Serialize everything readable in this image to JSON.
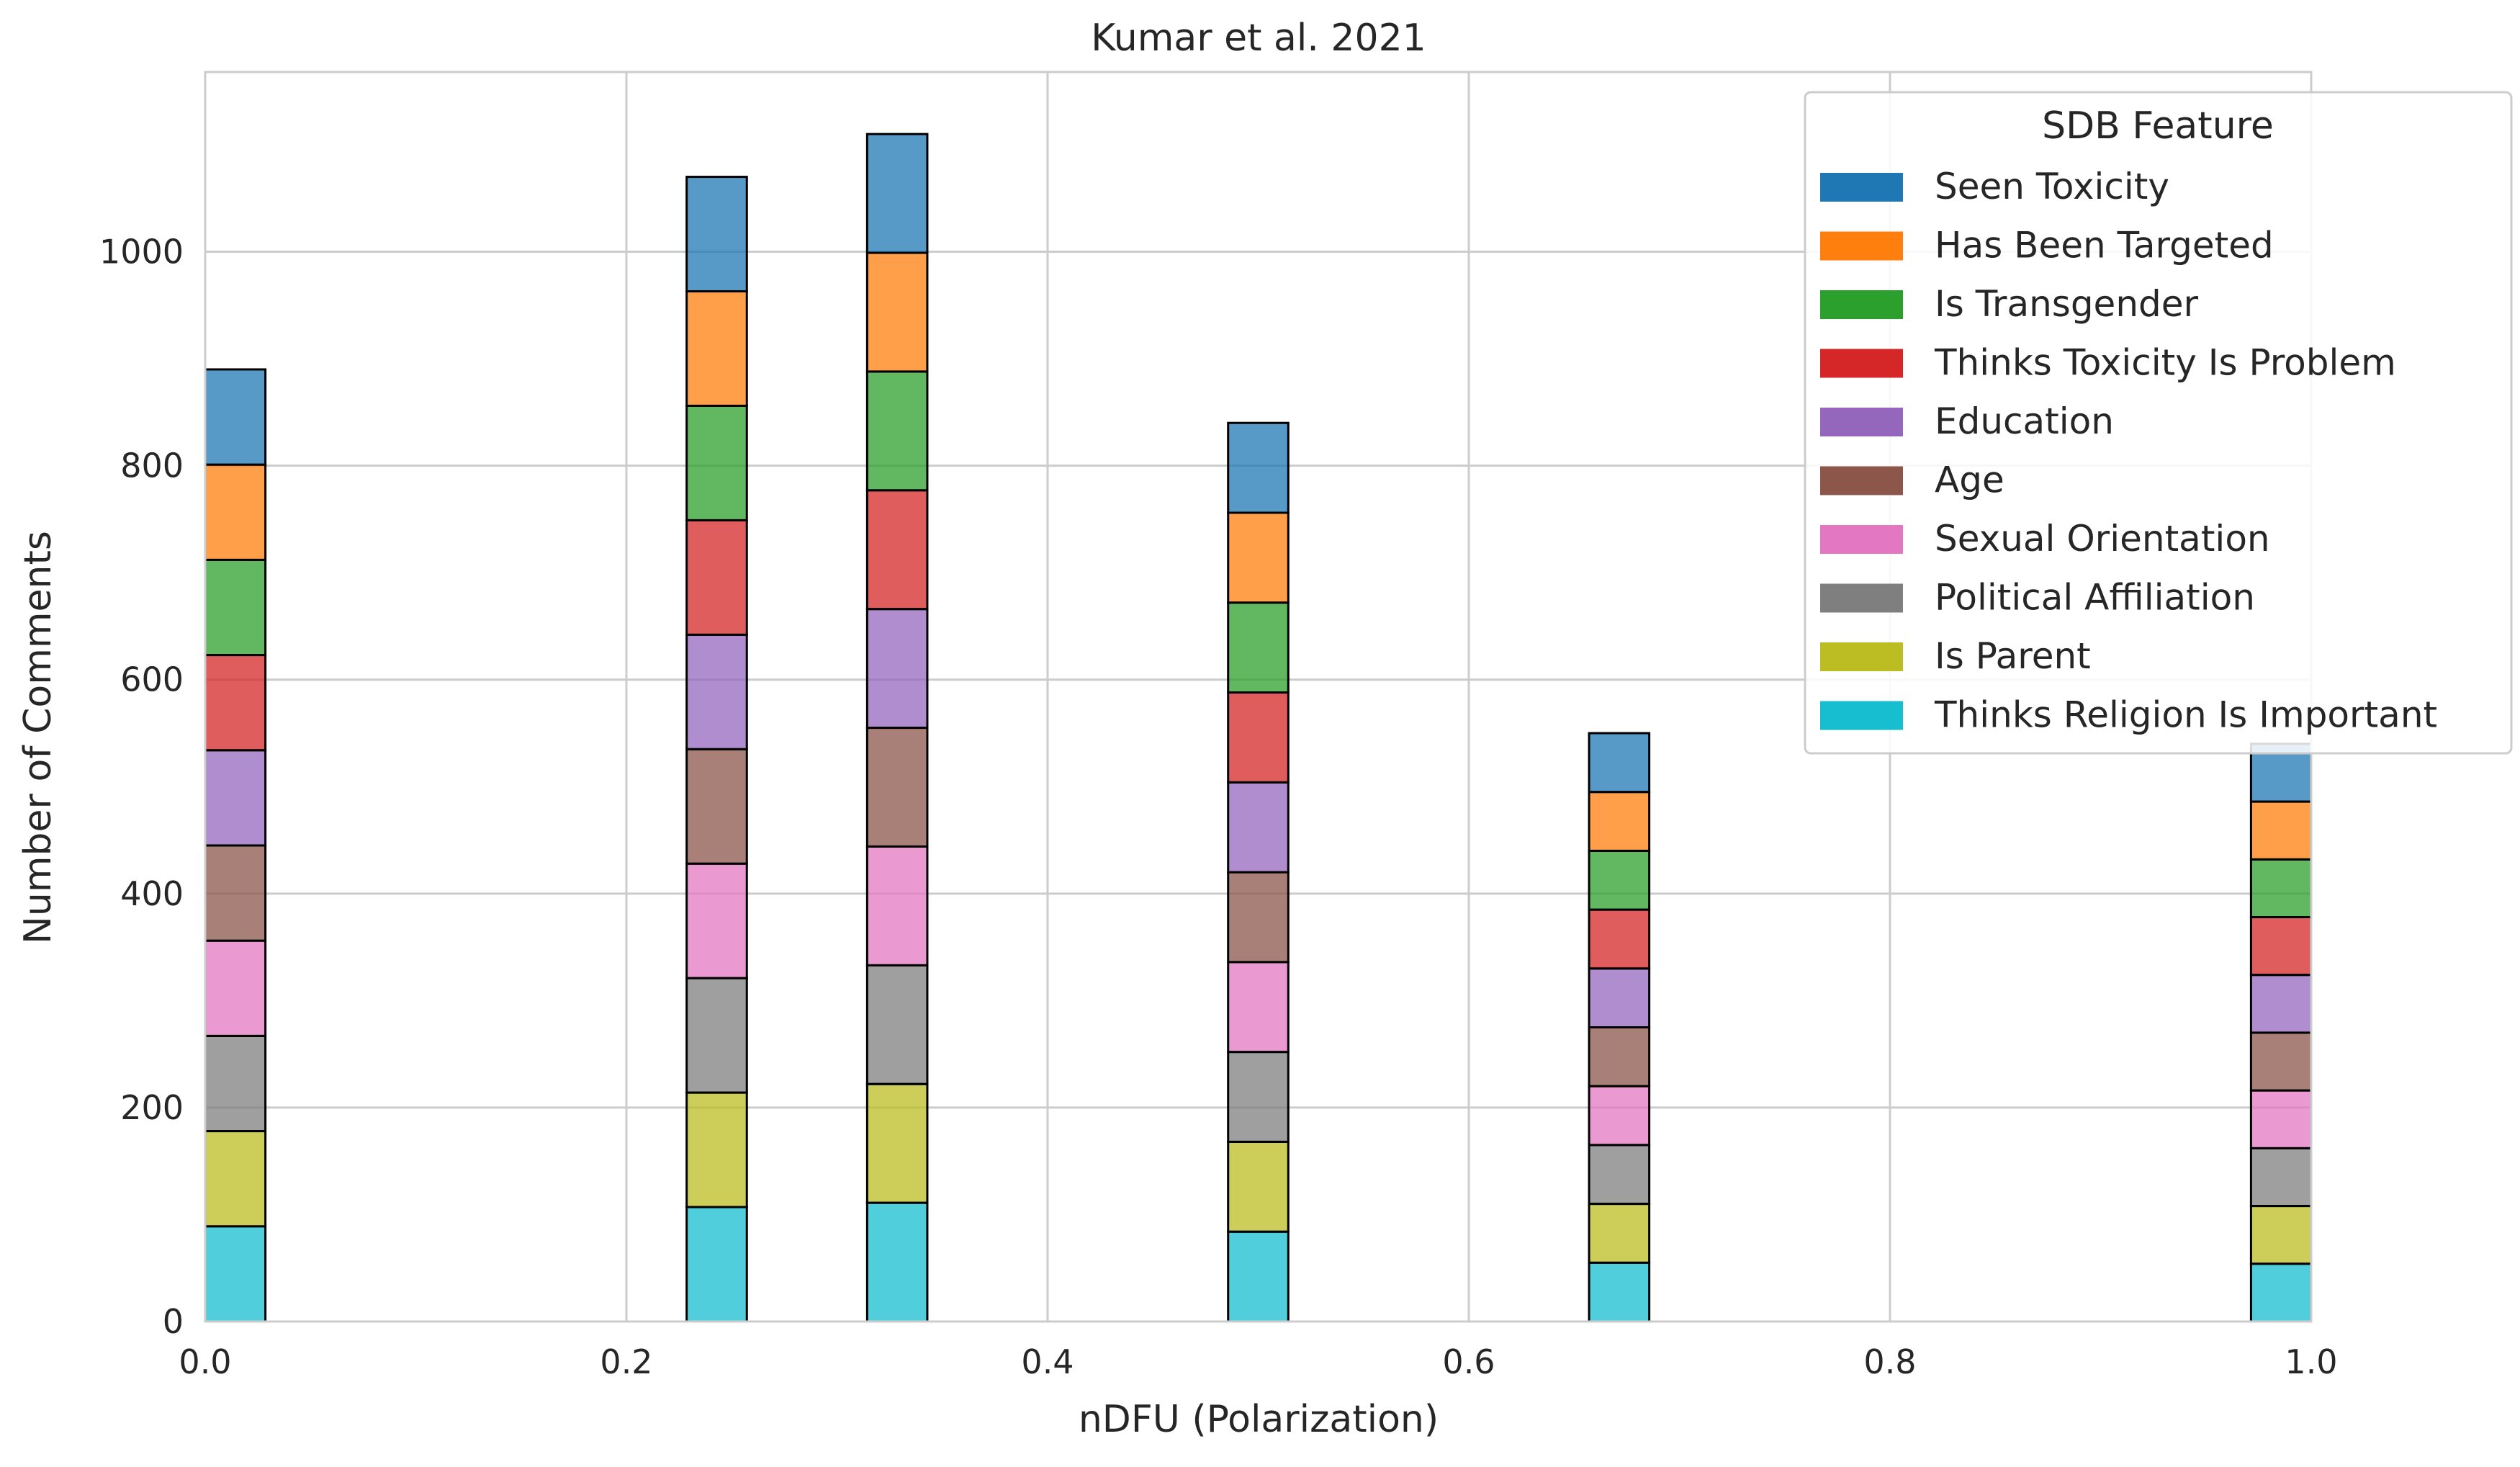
{
  "chart_data": {
    "type": "bar",
    "stacked": true,
    "title": "Kumar et al. 2021",
    "xlabel": "nDFU (Polarization)",
    "ylabel": "Number of Comments",
    "xlim": [
      0.0,
      1.0
    ],
    "ylim": [
      0,
      1168
    ],
    "xticks": [
      0.0,
      0.2,
      0.4,
      0.6,
      0.8,
      1.0
    ],
    "xtick_labels": [
      "0.0",
      "0.2",
      "0.4",
      "0.6",
      "0.8",
      "1.0"
    ],
    "yticks": [
      0,
      200,
      400,
      600,
      800,
      1000
    ],
    "ytick_labels": [
      "0",
      "200",
      "400",
      "600",
      "800",
      "1000"
    ],
    "grid": true,
    "bin_width": 0.02857,
    "x": [
      0.0143,
      0.2429,
      0.3286,
      0.5,
      0.6714,
      0.9857
    ],
    "legend": {
      "title": "SDB Feature",
      "placement": "upper right"
    },
    "series": [
      {
        "name": "Thinks Religion Is Important",
        "color": "#17becf",
        "values": [
          89,
          107,
          111,
          84,
          55,
          54
        ]
      },
      {
        "name": "Is Parent",
        "color": "#bcbd22",
        "values": [
          89,
          107,
          111,
          84,
          55,
          54
        ]
      },
      {
        "name": "Political Affiliation",
        "color": "#7f7f7f",
        "values": [
          89,
          107,
          111,
          84,
          55,
          54
        ]
      },
      {
        "name": "Sexual Orientation",
        "color": "#e377c2",
        "values": [
          89,
          107,
          111,
          84,
          55,
          54
        ]
      },
      {
        "name": "Age",
        "color": "#8c564b",
        "values": [
          89,
          107,
          111,
          84,
          55,
          54
        ]
      },
      {
        "name": "Education",
        "color": "#9467bd",
        "values": [
          89,
          107,
          111,
          84,
          55,
          54
        ]
      },
      {
        "name": "Thinks Toxicity Is Problem",
        "color": "#d62728",
        "values": [
          89,
          107,
          111,
          84,
          55,
          54
        ]
      },
      {
        "name": "Is Transgender",
        "color": "#2ca02c",
        "values": [
          89,
          107,
          111,
          84,
          55,
          54
        ]
      },
      {
        "name": "Has Been Targeted",
        "color": "#ff7f0e",
        "values": [
          89,
          107,
          111,
          84,
          55,
          54
        ]
      },
      {
        "name": "Seen Toxicity",
        "color": "#1f77b4",
        "values": [
          89,
          107,
          111,
          84,
          55,
          54
        ]
      }
    ]
  }
}
